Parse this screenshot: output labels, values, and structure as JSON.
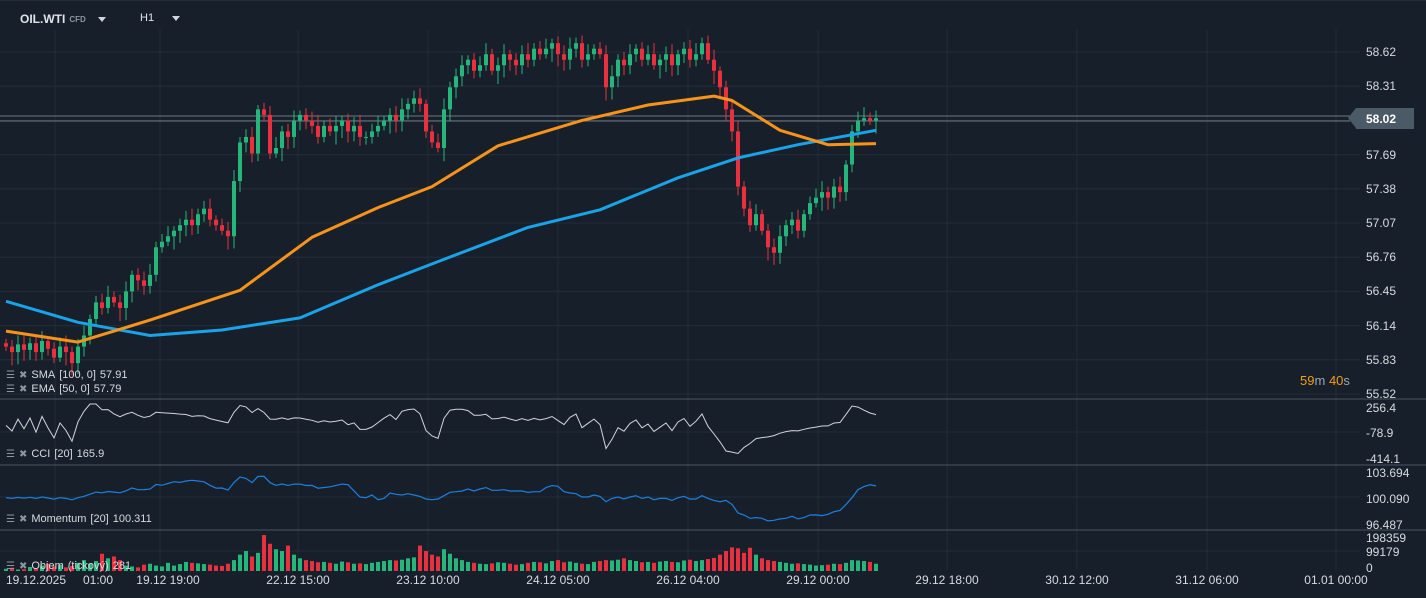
{
  "header": {
    "symbol": "OIL.WTI",
    "symbol_type": "CFD",
    "timeframe": "H1"
  },
  "colors": {
    "bg": "#17202a",
    "up": "#26b57a",
    "down": "#e8303f",
    "sma": "#1aa3e8",
    "ema": "#f7931a",
    "cci": "#d0d5da",
    "momentum": "#1c7fe0",
    "grid": "#222d38"
  },
  "price_axis": {
    "labels": [
      "58.62",
      "58.31",
      "58.02",
      "57.69",
      "57.38",
      "57.07",
      "56.76",
      "56.45",
      "56.14",
      "55.83",
      "55.52"
    ],
    "min": 55.52,
    "max": 58.62,
    "current": "58.02",
    "current_value": 58.02
  },
  "timer": {
    "minutes": "59",
    "m": "m",
    "seconds": "40",
    "s": "s"
  },
  "indicators": {
    "sma": {
      "label": "SMA",
      "params": "[100,  0]",
      "value": "57.91"
    },
    "ema": {
      "label": "EMA",
      "params": "[50,  0]",
      "value": "57.79"
    },
    "cci": {
      "label": "CCI",
      "params": "[20]",
      "value": "165.9",
      "axis": [
        "256.4",
        "-78.9",
        "-414.1"
      ],
      "min": -414.1,
      "max": 256.4
    },
    "momentum": {
      "label": "Momentum",
      "params": "[20]",
      "value": "100.311",
      "axis": [
        "103.694",
        "100.090",
        "96.487"
      ],
      "min": 96.487,
      "max": 103.694
    },
    "volume": {
      "label": "Objem",
      "params": "(tickový)",
      "value": "281",
      "axis": [
        "198359",
        "99179",
        "0"
      ],
      "max": 198359
    }
  },
  "time_axis": [
    "19.12.2025",
    "01:00",
    "19.12  19:00",
    "22.12  15:00",
    "23.12  10:00",
    "24.12  05:00",
    "26.12  04:00",
    "29.12  00:00",
    "29.12  18:00",
    "30.12  12:00",
    "31.12  06:00",
    "01.01  00:00"
  ],
  "chart_data": {
    "type": "candlestick",
    "closes": [
      55.95,
      55.9,
      55.97,
      55.92,
      55.98,
      55.9,
      56.0,
      55.93,
      55.85,
      55.95,
      55.9,
      55.8,
      55.95,
      56.05,
      56.2,
      56.35,
      56.3,
      56.4,
      56.35,
      56.3,
      56.45,
      56.6,
      56.55,
      56.5,
      56.6,
      56.85,
      56.9,
      56.95,
      57.0,
      57.05,
      57.1,
      57.05,
      57.15,
      57.2,
      57.1,
      57.05,
      57.0,
      56.95,
      57.45,
      57.8,
      57.85,
      57.7,
      58.1,
      58.05,
      57.7,
      57.75,
      57.9,
      57.85,
      58.0,
      58.05,
      58.0,
      57.95,
      57.85,
      57.95,
      57.9,
      57.95,
      58.0,
      57.9,
      57.95,
      57.85,
      57.85,
      57.9,
      57.95,
      58.0,
      58.05,
      58.0,
      58.1,
      58.15,
      58.2,
      58.15,
      57.9,
      57.8,
      57.75,
      58.1,
      58.3,
      58.4,
      58.5,
      58.55,
      58.45,
      58.5,
      58.6,
      58.45,
      58.5,
      58.6,
      58.55,
      58.5,
      58.6,
      58.55,
      58.65,
      58.6,
      58.65,
      58.7,
      58.6,
      58.55,
      58.65,
      58.7,
      58.55,
      58.6,
      58.65,
      58.6,
      58.3,
      58.4,
      58.55,
      58.5,
      58.6,
      58.65,
      58.55,
      58.6,
      58.5,
      58.55,
      58.6,
      58.5,
      58.6,
      58.65,
      58.55,
      58.6,
      58.7,
      58.55,
      58.45,
      58.3,
      58.1,
      57.9,
      57.4,
      57.2,
      57.05,
      57.15,
      57.0,
      56.85,
      56.8,
      56.95,
      57.05,
      57.1,
      57.0,
      57.15,
      57.25,
      57.3,
      57.35,
      57.3,
      57.4,
      57.35,
      57.6,
      57.9,
      58.0,
      58.02,
      58.0,
      58.02
    ],
    "volume": [
      12,
      18,
      8,
      10,
      22,
      15,
      30,
      40,
      25,
      35,
      20,
      28,
      45,
      60,
      40,
      55,
      95,
      70,
      80,
      60,
      30,
      25,
      20,
      35,
      40,
      30,
      25,
      45,
      30,
      38,
      50,
      45,
      42,
      38,
      35,
      30,
      28,
      40,
      60,
      90,
      110,
      80,
      100,
      198,
      150,
      120,
      110,
      140,
      90,
      70,
      60,
      55,
      48,
      50,
      45,
      40,
      52,
      48,
      40,
      42,
      38,
      45,
      50,
      55,
      60,
      58,
      62,
      70,
      75,
      140,
      110,
      90,
      80,
      120,
      95,
      70,
      60,
      50,
      45,
      40,
      38,
      42,
      48,
      45,
      40,
      35,
      38,
      45,
      50,
      48,
      42,
      55,
      60,
      48,
      52,
      45,
      40,
      38,
      50,
      55,
      60,
      58,
      62,
      70,
      60,
      55,
      48,
      50,
      45,
      52,
      55,
      50,
      48,
      58,
      62,
      55,
      60,
      66,
      72,
      90,
      110,
      130,
      125,
      100,
      128,
      90,
      70,
      60,
      55,
      50,
      45,
      40,
      42,
      38,
      35,
      30,
      32,
      35,
      40,
      38,
      45,
      60,
      58,
      55,
      50,
      40
    ],
    "sma_points": [
      [
        0,
        56.36
      ],
      [
        12,
        56.17
      ],
      [
        24,
        56.05
      ],
      [
        36,
        56.1
      ],
      [
        49,
        56.21
      ],
      [
        62,
        56.51
      ],
      [
        72,
        56.72
      ],
      [
        87,
        57.03
      ],
      [
        99,
        57.19
      ],
      [
        112,
        57.48
      ],
      [
        122,
        57.66
      ],
      [
        132,
        57.78
      ],
      [
        145,
        57.91
      ]
    ],
    "ema_points": [
      [
        0,
        56.09
      ],
      [
        12,
        55.99
      ],
      [
        24,
        56.19
      ],
      [
        39,
        56.46
      ],
      [
        51,
        56.94
      ],
      [
        62,
        57.21
      ],
      [
        71,
        57.4
      ],
      [
        82,
        57.77
      ],
      [
        96,
        58.0
      ],
      [
        107,
        58.14
      ],
      [
        118,
        58.22
      ],
      [
        121,
        58.18
      ],
      [
        129,
        57.91
      ],
      [
        137,
        57.78
      ],
      [
        145,
        57.79
      ]
    ]
  }
}
